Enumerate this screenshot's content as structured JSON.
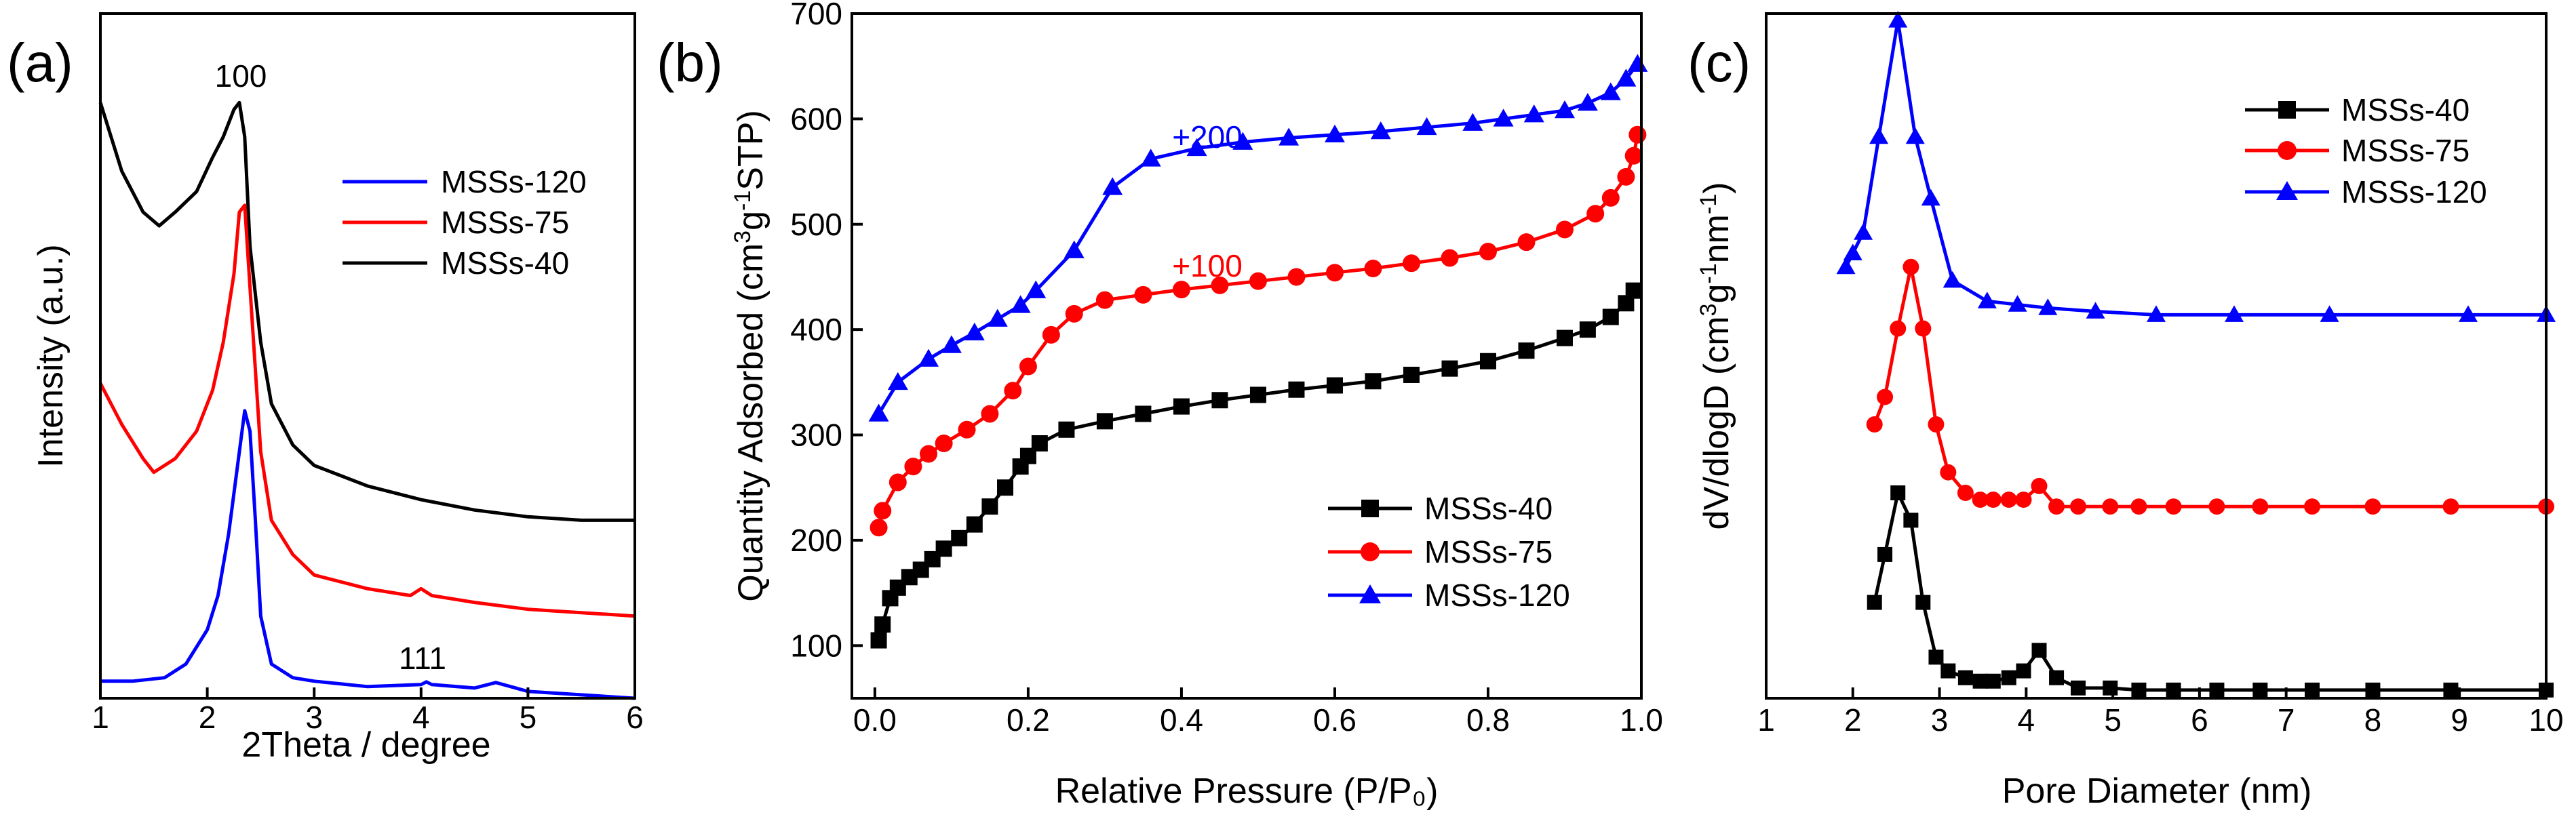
{
  "chart_data": [
    {
      "panel": "(a)",
      "type": "line",
      "title": "",
      "xlabel": "2Theta / degree",
      "ylabel": "Intensity (a.u.)",
      "xlim": [
        1,
        6
      ],
      "ylim": [
        0,
        100
      ],
      "xticks": [
        "1",
        "2",
        "3",
        "4",
        "5",
        "6"
      ],
      "yticks": [],
      "legend_position": "right",
      "legend": [
        "MSSs-120",
        "MSSs-75",
        "MSSs-40"
      ],
      "annotations": [
        {
          "text": "100",
          "x": 2.3,
          "y": 91
        },
        {
          "text": "111",
          "x": 4.0,
          "y": 7
        }
      ],
      "series": [
        {
          "name": "MSSs-40",
          "color": "#000000",
          "x": [
            1.0,
            1.2,
            1.4,
            1.55,
            1.7,
            1.9,
            2.05,
            2.15,
            2.25,
            2.3,
            2.35,
            2.4,
            2.5,
            2.6,
            2.8,
            3.0,
            3.5,
            4.0,
            4.5,
            5.0,
            5.5,
            6.0
          ],
          "y": [
            87,
            77,
            71,
            69,
            71,
            74,
            79,
            82,
            86,
            87,
            82,
            66,
            52,
            43,
            37,
            34,
            31,
            29,
            27.5,
            26.5,
            26,
            26
          ]
        },
        {
          "name": "MSSs-75",
          "color": "#ff0000",
          "x": [
            1.0,
            1.2,
            1.4,
            1.5,
            1.7,
            1.9,
            2.05,
            2.15,
            2.25,
            2.3,
            2.35,
            2.4,
            2.5,
            2.6,
            2.8,
            3.0,
            3.5,
            3.9,
            4.0,
            4.1,
            4.5,
            5.0,
            6.0
          ],
          "y": [
            46,
            40,
            35,
            33,
            35,
            39,
            45,
            52,
            62,
            71,
            72,
            60,
            36,
            26,
            21,
            18,
            16,
            15,
            16,
            15,
            14,
            13,
            12
          ]
        },
        {
          "name": "MSSs-120",
          "color": "#0000ff",
          "x": [
            1.0,
            1.3,
            1.6,
            1.8,
            2.0,
            2.1,
            2.2,
            2.3,
            2.35,
            2.4,
            2.45,
            2.5,
            2.6,
            2.8,
            3.0,
            3.5,
            4.0,
            4.05,
            4.1,
            4.5,
            4.7,
            5.0,
            6.0
          ],
          "y": [
            2.5,
            2.5,
            3,
            5,
            10,
            15,
            24,
            36,
            42,
            39,
            26,
            12,
            5,
            3,
            2.5,
            1.7,
            2.0,
            2.4,
            2.0,
            1.5,
            2.3,
            1,
            0
          ]
        }
      ]
    },
    {
      "panel": "(b)",
      "type": "line",
      "title": "",
      "xlabel": "Relative Pressure (P/P₀)",
      "ylabel_base": "Quantity Adsorbed (cm",
      "ylabel_sup1": "3",
      "ylabel_mid": "g",
      "ylabel_sup2": "-1",
      "ylabel_end": "STP)",
      "xlim": [
        -0.03,
        1.0
      ],
      "ylim": [
        50,
        700
      ],
      "xticks": [
        "0.0",
        "0.2",
        "0.4",
        "0.6",
        "0.8",
        "1.0"
      ],
      "yticks": [
        "100",
        "200",
        "300",
        "400",
        "500",
        "600",
        "700"
      ],
      "legend_position": "bottom-right",
      "legend": [
        "MSSs-40",
        "MSSs-75",
        "MSSs-120"
      ],
      "annotations": [
        {
          "text": "+200",
          "x": 0.42,
          "y": 615,
          "color": "#0000ff"
        },
        {
          "text": "+100",
          "x": 0.42,
          "y": 481,
          "color": "#ff0000"
        }
      ],
      "series": [
        {
          "name": "MSSs-40",
          "color": "#000000",
          "marker": "square",
          "x": [
            0.005,
            0.01,
            0.02,
            0.03,
            0.045,
            0.06,
            0.075,
            0.09,
            0.11,
            0.13,
            0.15,
            0.17,
            0.19,
            0.2,
            0.215,
            0.25,
            0.3,
            0.35,
            0.4,
            0.45,
            0.5,
            0.55,
            0.6,
            0.65,
            0.7,
            0.75,
            0.8,
            0.85,
            0.9,
            0.93,
            0.96,
            0.98,
            0.99
          ],
          "y": [
            105,
            120,
            145,
            155,
            165,
            172,
            182,
            192,
            202,
            215,
            232,
            250,
            270,
            280,
            292,
            305,
            313,
            320,
            327,
            333,
            338,
            343,
            347,
            351,
            357,
            363,
            370,
            380,
            392,
            400,
            412,
            425,
            437
          ]
        },
        {
          "name": "MSSs-75",
          "color": "#ff0000",
          "marker": "circle",
          "x": [
            0.005,
            0.01,
            0.03,
            0.05,
            0.07,
            0.09,
            0.12,
            0.15,
            0.18,
            0.2,
            0.23,
            0.26,
            0.3,
            0.35,
            0.4,
            0.45,
            0.5,
            0.55,
            0.6,
            0.65,
            0.7,
            0.75,
            0.8,
            0.85,
            0.9,
            0.94,
            0.96,
            0.98,
            0.99,
            0.995
          ],
          "y": [
            212,
            228,
            255,
            270,
            282,
            292,
            305,
            320,
            342,
            365,
            395,
            415,
            428,
            433,
            438,
            442,
            446,
            450,
            454,
            458,
            463,
            468,
            474,
            483,
            495,
            510,
            525,
            545,
            565,
            585
          ]
        },
        {
          "name": "MSSs-120",
          "color": "#0000ff",
          "marker": "triangle",
          "x": [
            0.005,
            0.03,
            0.07,
            0.1,
            0.13,
            0.16,
            0.19,
            0.21,
            0.26,
            0.31,
            0.36,
            0.42,
            0.48,
            0.54,
            0.6,
            0.66,
            0.72,
            0.78,
            0.82,
            0.86,
            0.9,
            0.93,
            0.96,
            0.98,
            0.995
          ],
          "y": [
            320,
            350,
            372,
            385,
            397,
            410,
            423,
            437,
            475,
            535,
            562,
            572,
            578,
            582,
            585,
            588,
            592,
            596,
            600,
            604,
            608,
            615,
            625,
            638,
            652
          ]
        }
      ]
    },
    {
      "panel": "(c)",
      "type": "line",
      "title": "",
      "xlabel": "Pore Diameter (nm)",
      "ylabel_base": "dV/dlogD (cm",
      "ylabel_sup1": "3",
      "ylabel_mid": "g",
      "ylabel_sup2": "-1",
      "ylabel_mid2": "nm",
      "ylabel_sup3": "-1",
      "ylabel_end": ")",
      "xlim": [
        1,
        10
      ],
      "ylim": [
        0,
        100
      ],
      "xticks": [
        "1",
        "2",
        "3",
        "4",
        "5",
        "6",
        "7",
        "8",
        "9",
        "10"
      ],
      "yticks": [],
      "legend_position": "top-right",
      "legend": [
        "MSSs-40",
        "MSSs-75",
        "MSSs-120"
      ],
      "series": [
        {
          "name": "MSSs-40",
          "color": "#000000",
          "marker": "square",
          "x": [
            2.25,
            2.37,
            2.52,
            2.67,
            2.81,
            2.96,
            3.1,
            3.3,
            3.47,
            3.62,
            3.8,
            3.97,
            4.15,
            4.35,
            4.6,
            4.97,
            5.3,
            5.7,
            6.2,
            6.7,
            7.3,
            8.0,
            8.9,
            10.0
          ],
          "y": [
            14,
            21,
            30,
            26,
            14,
            6,
            4,
            3,
            2.5,
            2.5,
            3,
            4,
            7,
            3,
            1.5,
            1.5,
            1.2,
            1.2,
            1.2,
            1.2,
            1.2,
            1.2,
            1.2,
            1.2
          ]
        },
        {
          "name": "MSSs-75",
          "color": "#ff0000",
          "marker": "circle",
          "x": [
            2.25,
            2.37,
            2.52,
            2.67,
            2.81,
            2.96,
            3.1,
            3.3,
            3.47,
            3.62,
            3.8,
            3.97,
            4.15,
            4.35,
            4.6,
            4.97,
            5.3,
            5.7,
            6.2,
            6.7,
            7.3,
            8.0,
            8.9,
            10.0
          ],
          "y": [
            40,
            44,
            54,
            63,
            54,
            40,
            33,
            30,
            29,
            29,
            29,
            29,
            31,
            28,
            28,
            28,
            28,
            28,
            28,
            28,
            28,
            28,
            28,
            28
          ]
        },
        {
          "name": "MSSs-120",
          "color": "#0000ff",
          "marker": "triangle",
          "x": [
            1.92,
            2.0,
            2.12,
            2.3,
            2.52,
            2.72,
            2.9,
            3.15,
            3.55,
            3.9,
            4.25,
            4.8,
            5.5,
            6.4,
            7.5,
            9.1,
            10.0
          ],
          "y": [
            63,
            65,
            68,
            82,
            99,
            82,
            73,
            61,
            58,
            57.5,
            57,
            56.5,
            56,
            56,
            56,
            56,
            56
          ]
        }
      ]
    }
  ]
}
